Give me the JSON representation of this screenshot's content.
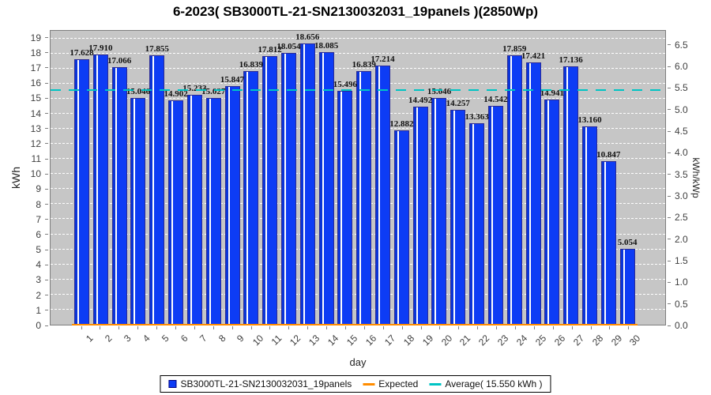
{
  "title": "6-2023( SB3000TL-21-SN2130032031_19panels )(2850Wp)",
  "colors": {
    "bar": "#0d3cf5",
    "bar_dark_edge": "#0a34d8",
    "bar_outline": "#2b2b96",
    "expected": "#ff8c00",
    "average": "#00c4c4",
    "plot_background": "#c6c6c6",
    "gridline": "#ffffff"
  },
  "axes": {
    "left_label": "kWh",
    "right_label": "kWh/kWp",
    "x_label": "day"
  },
  "legend": [
    {
      "label": "SB3000TL-21-SN2130032031_19panels",
      "swatch": "square",
      "color": "#0d3cf5"
    },
    {
      "label": "Expected",
      "swatch": "line",
      "color": "#ff8c00"
    },
    {
      "label": "Average( 15.550 kWh )",
      "swatch": "line",
      "color": "#00c4c4"
    }
  ],
  "chart_data": {
    "type": "bar",
    "title": "6-2023( SB3000TL-21-SN2130032031_19panels )(2850Wp)",
    "categories": [
      1,
      2,
      3,
      4,
      5,
      6,
      7,
      8,
      9,
      10,
      11,
      12,
      13,
      14,
      15,
      16,
      17,
      18,
      19,
      20,
      21,
      22,
      23,
      24,
      25,
      26,
      27,
      28,
      29,
      30
    ],
    "series": [
      {
        "name": "SB3000TL-21-SN2130032031_19panels",
        "values": [
          17.628,
          17.91,
          17.066,
          15.046,
          17.855,
          14.902,
          15.233,
          15.027,
          15.847,
          16.839,
          17.812,
          18.054,
          18.656,
          18.085,
          15.496,
          16.839,
          17.214,
          12.882,
          14.492,
          15.046,
          14.257,
          13.363,
          14.542,
          17.859,
          17.421,
          14.941,
          17.136,
          13.16,
          10.847,
          5.054
        ]
      }
    ],
    "value_label_decimals": 3,
    "average": 15.55,
    "expected_baseline": 0,
    "xlabel": "day",
    "ylabel_left": "kWh",
    "ylabel_right": "kWh/kWp",
    "ylim_left": [
      0,
      19.5
    ],
    "yticks_left": {
      "min": 0,
      "max": 19,
      "step": 1
    },
    "yticks_right": {
      "min": 0.0,
      "max": 6.5,
      "step": 0.5,
      "kwh_per_unit": 2.85
    },
    "grid": "horizontal-dashed",
    "legend_position": "bottom"
  }
}
